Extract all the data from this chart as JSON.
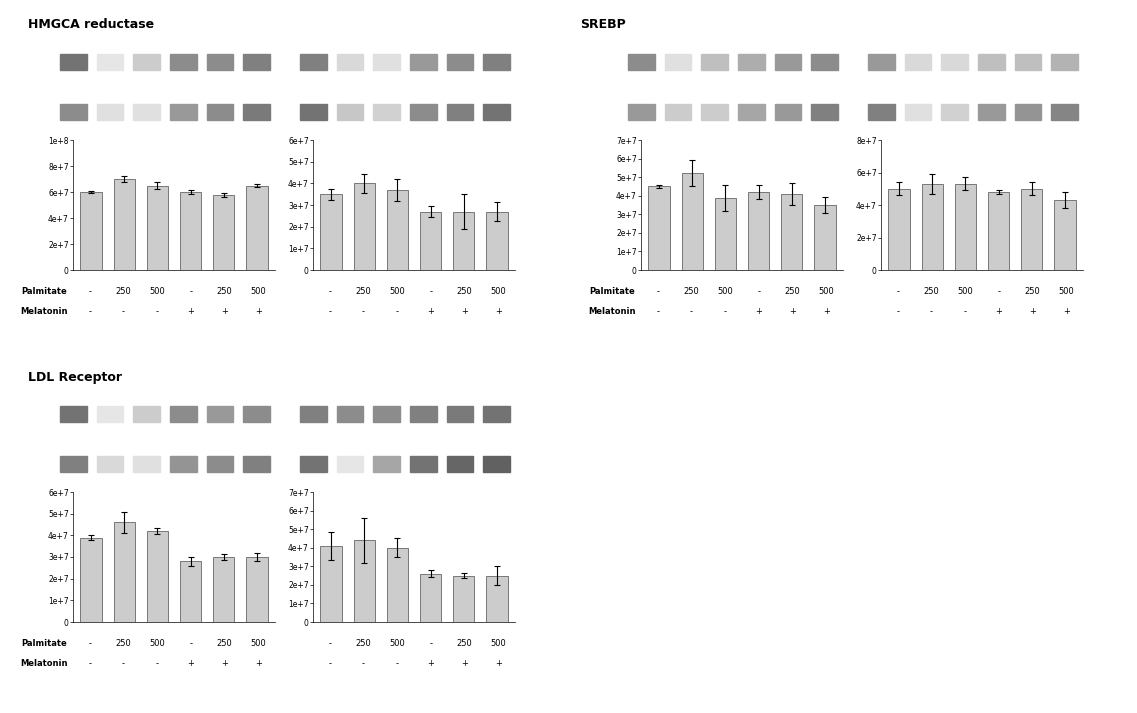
{
  "sections": [
    {
      "title": "HMGCA reductase",
      "charts": [
        {
          "values": [
            6e-07,
            7e-07,
            6.5e-07,
            6e-07,
            5.8e-07,
            6.5e-07
          ],
          "errors": [
            1e-08,
            2.5e-08,
            2.5e-08,
            1.5e-08,
            1.5e-08,
            1.5e-08
          ],
          "ylim": [
            0,
            1e-06
          ],
          "yticks": [
            0,
            2e-07,
            4e-07,
            6e-07,
            8e-07,
            1e-06
          ],
          "ytick_labels": [
            "0",
            "2e+7",
            "4e+7",
            "6e+7",
            "8e+7",
            "1e+8"
          ],
          "gel_top_bands": [
            0.45,
            0.9,
            0.8,
            0.55,
            0.55,
            0.5
          ],
          "gel_bot_bands": [
            0.55,
            0.88,
            0.88,
            0.6,
            0.55,
            0.48
          ]
        },
        {
          "values": [
            3.5e-07,
            4e-07,
            3.7e-07,
            2.7e-07,
            2.7e-07,
            2.7e-07
          ],
          "errors": [
            2.5e-08,
            4.5e-08,
            5e-08,
            2.5e-08,
            8e-08,
            4.5e-08
          ],
          "ylim": [
            0,
            6e-07
          ],
          "yticks": [
            0,
            1e-07,
            2e-07,
            3e-07,
            4e-07,
            5e-07,
            6e-07
          ],
          "ytick_labels": [
            "0",
            "1e+7",
            "2e+7",
            "3e+7",
            "4e+7",
            "5e+7",
            "6e+7"
          ],
          "gel_top_bands": [
            0.5,
            0.85,
            0.88,
            0.6,
            0.55,
            0.5
          ],
          "gel_bot_bands": [
            0.45,
            0.78,
            0.82,
            0.55,
            0.5,
            0.45
          ]
        }
      ]
    },
    {
      "title": "SREBP",
      "charts": [
        {
          "values": [
            4.5e-07,
            5.2e-07,
            3.9e-07,
            4.2e-07,
            4.1e-07,
            3.5e-07
          ],
          "errors": [
            1e-08,
            7e-08,
            7e-08,
            4e-08,
            6e-08,
            4.5e-08
          ],
          "ylim": [
            0,
            7e-07
          ],
          "yticks": [
            0,
            1e-07,
            2e-07,
            3e-07,
            4e-07,
            5e-07,
            6e-07,
            7e-07
          ],
          "ytick_labels": [
            "0",
            "1e+7",
            "2e+7",
            "3e+7",
            "4e+7",
            "5e+7",
            "6e+7",
            "7e+7"
          ],
          "gel_top_bands": [
            0.55,
            0.88,
            0.75,
            0.68,
            0.6,
            0.55
          ],
          "gel_bot_bands": [
            0.6,
            0.8,
            0.8,
            0.65,
            0.6,
            0.5
          ]
        },
        {
          "values": [
            5e-07,
            5.3e-07,
            5.3e-07,
            4.8e-07,
            5e-07,
            4.3e-07
          ],
          "errors": [
            4e-08,
            6e-08,
            4e-08,
            1.5e-08,
            4e-08,
            5e-08
          ],
          "ylim": [
            0,
            8e-07
          ],
          "yticks": [
            0,
            2e-07,
            4e-07,
            6e-07,
            8e-07
          ],
          "ytick_labels": [
            "0",
            "2e+7",
            "4e+7",
            "6e+7",
            "8e+7"
          ],
          "gel_top_bands": [
            0.6,
            0.85,
            0.85,
            0.75,
            0.75,
            0.7
          ],
          "gel_bot_bands": [
            0.5,
            0.88,
            0.82,
            0.6,
            0.58,
            0.52
          ]
        }
      ]
    },
    {
      "title": "LDL Receptor",
      "charts": [
        {
          "values": [
            3.9e-07,
            4.6e-07,
            4.2e-07,
            2.8e-07,
            3e-07,
            3e-07
          ],
          "errors": [
            1e-08,
            5e-08,
            1.5e-08,
            2e-08,
            1.5e-08,
            2e-08
          ],
          "ylim": [
            0,
            6e-07
          ],
          "yticks": [
            0,
            1e-07,
            2e-07,
            3e-07,
            4e-07,
            5e-07,
            6e-07
          ],
          "ytick_labels": [
            "0",
            "1e+7",
            "2e+7",
            "3e+7",
            "4e+7",
            "5e+7",
            "6e+7"
          ],
          "gel_top_bands": [
            0.45,
            0.9,
            0.8,
            0.55,
            0.6,
            0.55
          ],
          "gel_bot_bands": [
            0.5,
            0.85,
            0.88,
            0.58,
            0.55,
            0.5
          ]
        },
        {
          "values": [
            4.1e-07,
            4.4e-07,
            4e-07,
            2.6e-07,
            2.5e-07,
            2.5e-07
          ],
          "errors": [
            7.5e-08,
            1.2e-07,
            5e-08,
            2e-08,
            1.5e-08,
            5e-08
          ],
          "ylim": [
            0,
            7e-07
          ],
          "yticks": [
            0,
            1e-07,
            2e-07,
            3e-07,
            4e-07,
            5e-07,
            6e-07,
            7e-07
          ],
          "ytick_labels": [
            "0",
            "1e+7",
            "2e+7",
            "3e+7",
            "4e+7",
            "5e+7",
            "6e+7",
            "7e+7"
          ],
          "gel_top_bands": [
            0.5,
            0.55,
            0.55,
            0.5,
            0.48,
            0.45
          ],
          "gel_bot_bands": [
            0.45,
            0.9,
            0.65,
            0.45,
            0.4,
            0.38
          ]
        }
      ]
    }
  ],
  "bar_color": "#cccccc",
  "bar_edgecolor": "#666666",
  "x_labels_palmitate": [
    "-",
    "250",
    "500",
    "-",
    "250",
    "500"
  ],
  "x_labels_melatonin": [
    "-",
    "-",
    "-",
    "+",
    "+",
    "+"
  ],
  "background_color": "#ffffff"
}
